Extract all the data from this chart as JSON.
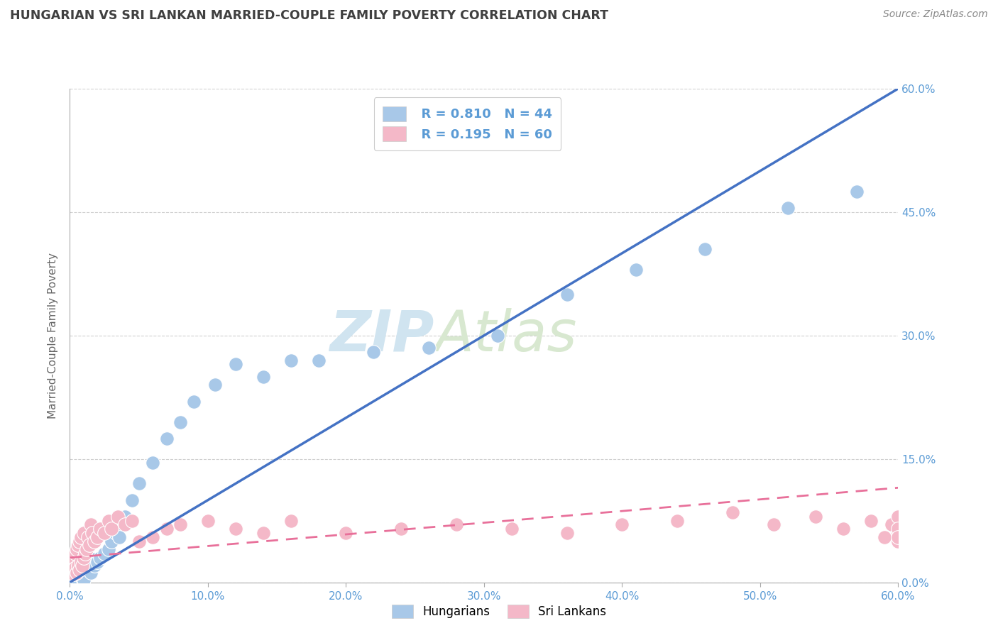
{
  "title": "HUNGARIAN VS SRI LANKAN MARRIED-COUPLE FAMILY POVERTY CORRELATION CHART",
  "source": "Source: ZipAtlas.com",
  "ylabel": "Married-Couple Family Poverty",
  "xlim": [
    0.0,
    0.6
  ],
  "ylim": [
    0.0,
    0.6
  ],
  "xticks": [
    0.0,
    0.1,
    0.2,
    0.3,
    0.4,
    0.5,
    0.6
  ],
  "yticks": [
    0.0,
    0.15,
    0.3,
    0.45,
    0.6
  ],
  "hungarian_color": "#a8c8e8",
  "sri_lankan_color": "#f4b8c8",
  "hungarian_line_color": "#4472c4",
  "sri_lankan_line_color": "#e8709a",
  "watermark": "ZIPAtlas",
  "watermark_color": "#d0e4f0",
  "background_color": "#ffffff",
  "grid_color": "#d0d0d0",
  "axis_label_color": "#5b9bd5",
  "title_color": "#404040",
  "legend_r_h": "R = 0.810",
  "legend_n_h": "N = 44",
  "legend_r_s": "R = 0.195",
  "legend_n_s": "N = 60",
  "hungarian_x": [
    0.002,
    0.003,
    0.004,
    0.005,
    0.006,
    0.007,
    0.008,
    0.009,
    0.01,
    0.01,
    0.012,
    0.013,
    0.014,
    0.015,
    0.016,
    0.017,
    0.018,
    0.02,
    0.022,
    0.025,
    0.028,
    0.03,
    0.033,
    0.036,
    0.04,
    0.045,
    0.05,
    0.06,
    0.07,
    0.08,
    0.09,
    0.105,
    0.12,
    0.14,
    0.16,
    0.18,
    0.22,
    0.26,
    0.31,
    0.36,
    0.41,
    0.46,
    0.52,
    0.57
  ],
  "hungarian_y": [
    0.005,
    0.01,
    0.005,
    0.008,
    0.003,
    0.012,
    0.015,
    0.005,
    0.003,
    0.018,
    0.02,
    0.015,
    0.025,
    0.012,
    0.022,
    0.028,
    0.02,
    0.025,
    0.03,
    0.035,
    0.04,
    0.05,
    0.06,
    0.055,
    0.08,
    0.1,
    0.12,
    0.145,
    0.175,
    0.195,
    0.22,
    0.24,
    0.265,
    0.25,
    0.27,
    0.27,
    0.28,
    0.285,
    0.3,
    0.35,
    0.38,
    0.405,
    0.455,
    0.475
  ],
  "sri_lankan_x": [
    0.001,
    0.002,
    0.002,
    0.003,
    0.003,
    0.004,
    0.004,
    0.005,
    0.005,
    0.006,
    0.006,
    0.007,
    0.007,
    0.008,
    0.008,
    0.009,
    0.01,
    0.01,
    0.011,
    0.012,
    0.013,
    0.014,
    0.015,
    0.016,
    0.018,
    0.02,
    0.022,
    0.025,
    0.028,
    0.03,
    0.035,
    0.04,
    0.045,
    0.05,
    0.06,
    0.07,
    0.08,
    0.1,
    0.12,
    0.14,
    0.16,
    0.2,
    0.24,
    0.28,
    0.32,
    0.36,
    0.4,
    0.44,
    0.48,
    0.51,
    0.54,
    0.56,
    0.58,
    0.59,
    0.595,
    0.6,
    0.6,
    0.6,
    0.6,
    0.6
  ],
  "sri_lankan_y": [
    0.02,
    0.015,
    0.025,
    0.01,
    0.03,
    0.018,
    0.035,
    0.012,
    0.04,
    0.02,
    0.045,
    0.015,
    0.05,
    0.025,
    0.055,
    0.02,
    0.03,
    0.06,
    0.035,
    0.04,
    0.055,
    0.045,
    0.07,
    0.06,
    0.05,
    0.055,
    0.065,
    0.06,
    0.075,
    0.065,
    0.08,
    0.07,
    0.075,
    0.05,
    0.055,
    0.065,
    0.07,
    0.075,
    0.065,
    0.06,
    0.075,
    0.06,
    0.065,
    0.07,
    0.065,
    0.06,
    0.07,
    0.075,
    0.085,
    0.07,
    0.08,
    0.065,
    0.075,
    0.055,
    0.07,
    0.08,
    0.06,
    0.065,
    0.05,
    0.055
  ],
  "blue_line_x": [
    0.0,
    0.6
  ],
  "blue_line_y": [
    0.0,
    0.6
  ],
  "pink_line_x": [
    0.0,
    0.6
  ],
  "pink_line_y": [
    0.03,
    0.115
  ]
}
